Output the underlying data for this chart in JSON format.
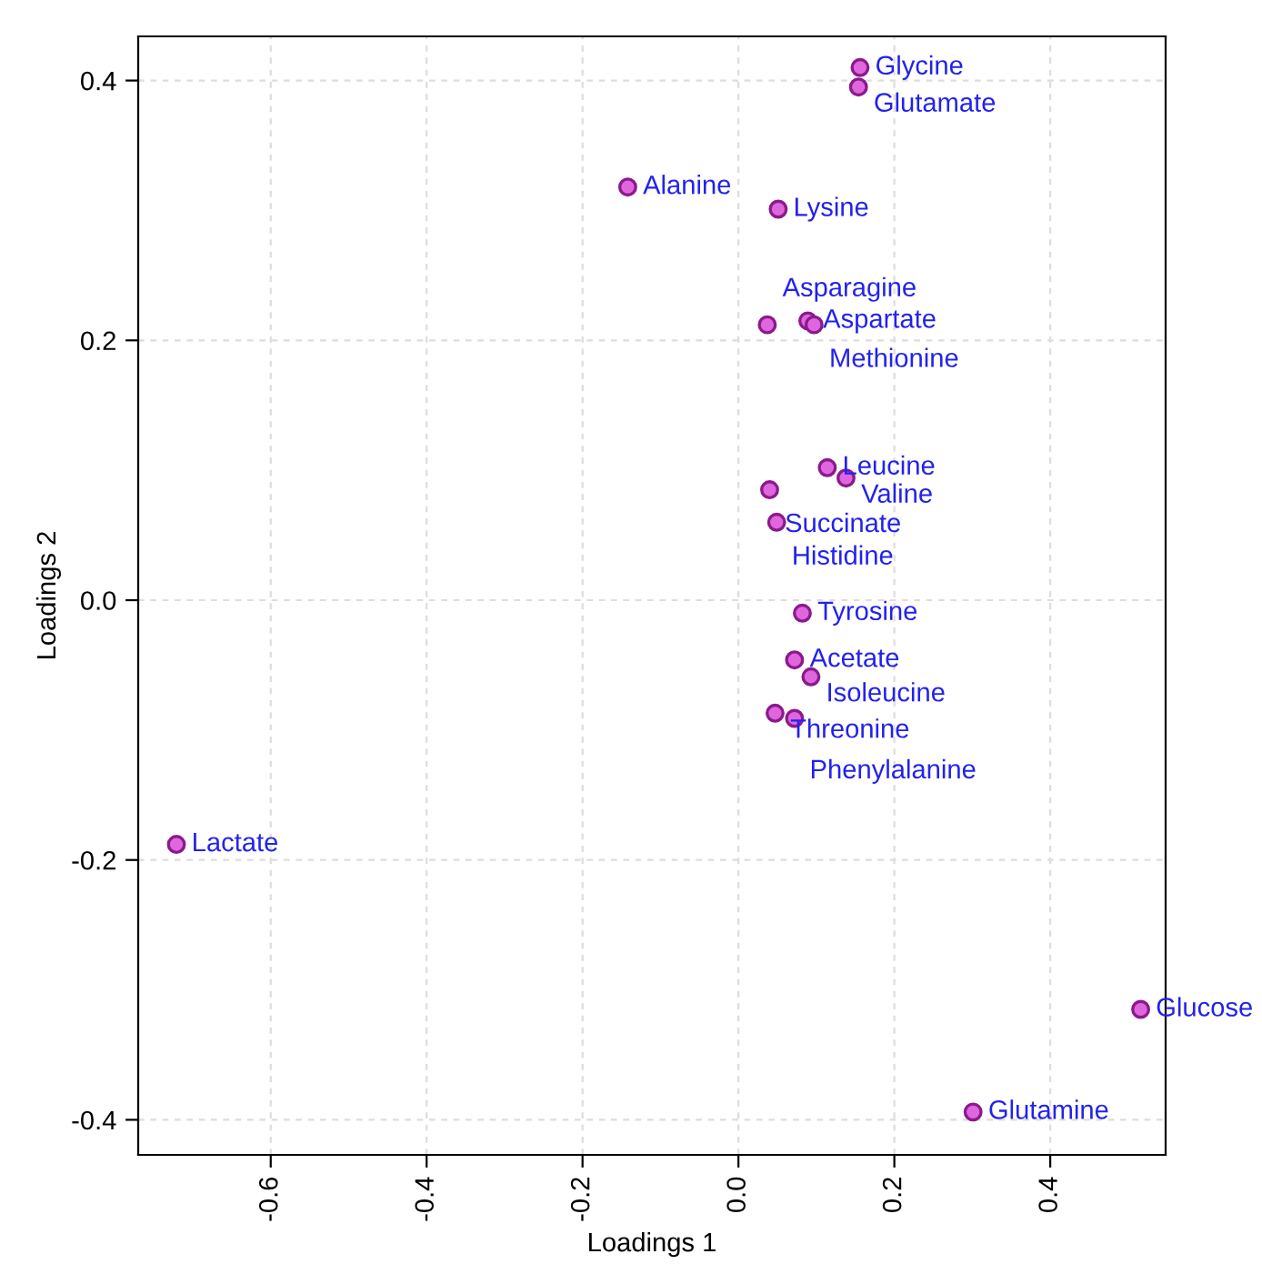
{
  "chart_data": {
    "type": "scatter",
    "xlabel": "Loadings 1",
    "ylabel": "Loadings 2",
    "x": [
      0.156,
      0.154,
      -0.142,
      0.051,
      0.089,
      0.037,
      0.097,
      0.114,
      0.138,
      0.04,
      0.049,
      0.082,
      0.072,
      0.093,
      0.047,
      0.072,
      -0.721,
      0.516,
      0.301
    ],
    "series": [
      {
        "color": "#e066e0",
        "values": [
          0.41,
          0.395,
          0.318,
          0.301,
          0.215,
          0.212,
          0.212,
          0.102,
          0.094,
          0.085,
          0.06,
          -0.01,
          -0.046,
          -0.059,
          -0.087,
          -0.091,
          -0.188,
          -0.315,
          -0.394
        ]
      }
    ],
    "annotations": [
      {
        "text": "Glycine",
        "x": 0.156,
        "y": 0.41
      },
      {
        "text": "Glutamate",
        "x": 0.154,
        "y": 0.395
      },
      {
        "text": "Alanine",
        "x": -0.142,
        "y": 0.318
      },
      {
        "text": "Lysine",
        "x": 0.051,
        "y": 0.301
      },
      {
        "text": "Aspartate",
        "x": 0.089,
        "y": 0.215
      },
      {
        "text": "Asparagine",
        "x": 0.037,
        "y": 0.212
      },
      {
        "text": "Methionine",
        "x": 0.097,
        "y": 0.212
      },
      {
        "text": "Leucine",
        "x": 0.114,
        "y": 0.102
      },
      {
        "text": "Valine",
        "x": 0.138,
        "y": 0.094
      },
      {
        "text": "Succinate",
        "x": 0.04,
        "y": 0.085
      },
      {
        "text": "Histidine",
        "x": 0.049,
        "y": 0.06
      },
      {
        "text": "Tyrosine",
        "x": 0.082,
        "y": -0.01
      },
      {
        "text": "Acetate",
        "x": 0.072,
        "y": -0.046
      },
      {
        "text": "Isoleucine",
        "x": 0.093,
        "y": -0.059
      },
      {
        "text": "Threonine",
        "x": 0.047,
        "y": -0.087
      },
      {
        "text": "Phenylalanine",
        "x": 0.072,
        "y": -0.091
      },
      {
        "text": "Lactate",
        "x": -0.721,
        "y": -0.188
      },
      {
        "text": "Glucose",
        "x": 0.516,
        "y": -0.315
      },
      {
        "text": "Glutamine",
        "x": 0.301,
        "y": -0.394
      }
    ],
    "xlim": [
      -0.77,
      0.548
    ],
    "ylim": [
      -0.427,
      0.434
    ],
    "xticks": [
      -0.6,
      -0.4,
      -0.2,
      {
        "value": 0.0,
        "label": "0.0"
      },
      0.2,
      0.4
    ],
    "yticks": [
      -0.4,
      -0.2,
      {
        "value": 0.0,
        "label": "0.0"
      },
      0.2,
      0.4
    ],
    "grid": true,
    "marker": "circle"
  }
}
